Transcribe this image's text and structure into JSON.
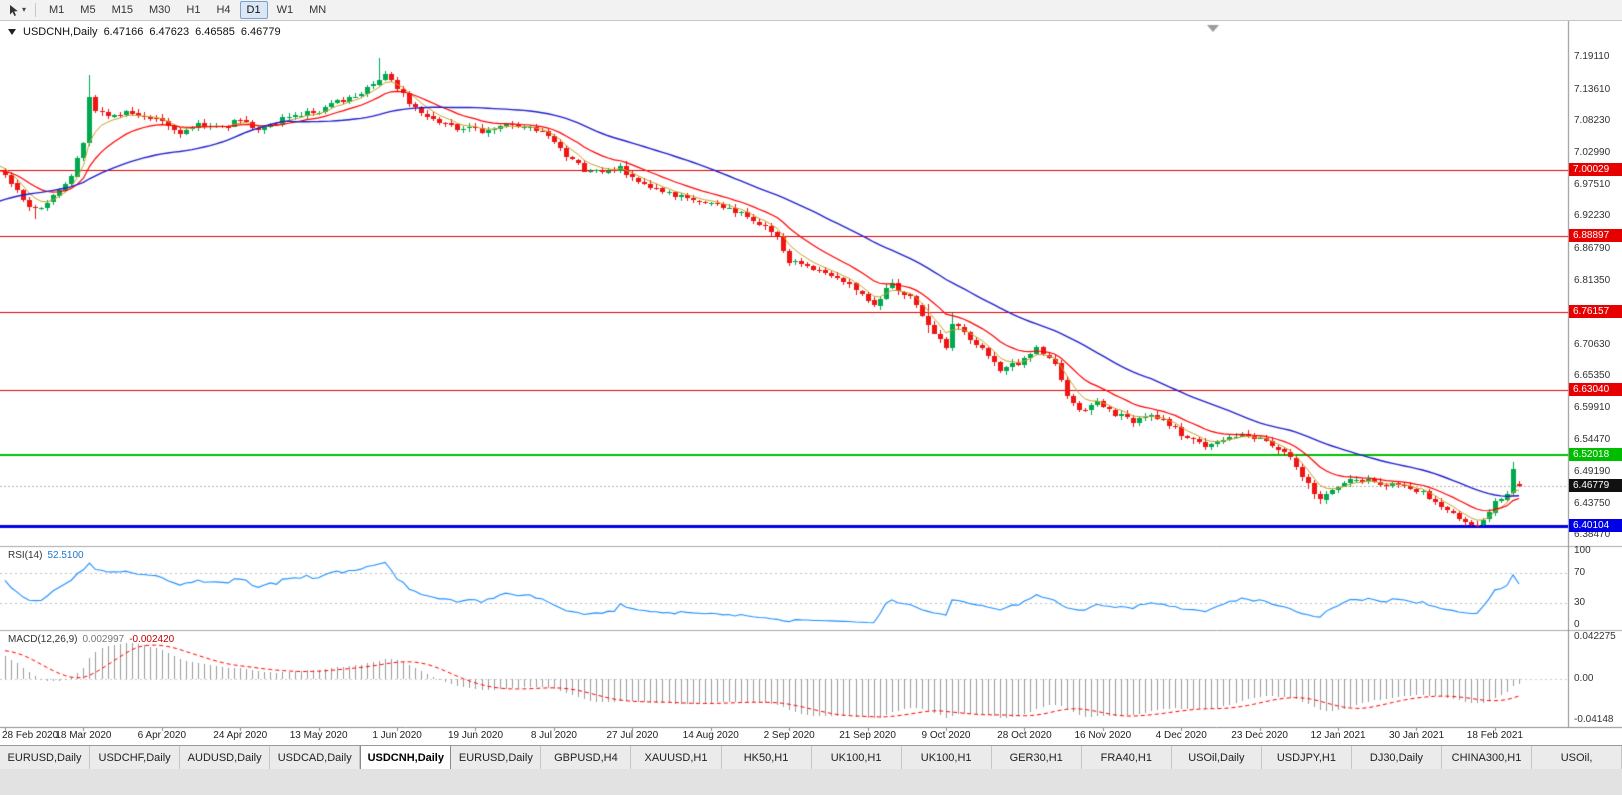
{
  "header": {
    "symbol": "USDCNH,Daily",
    "open": "6.47166",
    "high": "6.47623",
    "low": "6.46585",
    "close": "6.46779"
  },
  "toolbar": {
    "timeframes": [
      {
        "label": "M1",
        "active": false
      },
      {
        "label": "M5",
        "active": false
      },
      {
        "label": "M15",
        "active": false
      },
      {
        "label": "M30",
        "active": false
      },
      {
        "label": "H1",
        "active": false
      },
      {
        "label": "H4",
        "active": false
      },
      {
        "label": "D1",
        "active": true
      },
      {
        "label": "W1",
        "active": false
      },
      {
        "label": "MN",
        "active": false
      }
    ]
  },
  "tabs": [
    {
      "label": "EURUSD,Daily",
      "active": false
    },
    {
      "label": "USDCHF,Daily",
      "active": false
    },
    {
      "label": "AUDUSD,Daily",
      "active": false
    },
    {
      "label": "USDCAD,Daily",
      "active": false
    },
    {
      "label": "USDCNH,Daily",
      "active": true
    },
    {
      "label": "EURUSD,Daily",
      "active": false
    },
    {
      "label": "GBPUSD,H4",
      "active": false
    },
    {
      "label": "XAUUSD,H1",
      "active": false
    },
    {
      "label": "HK50,H1",
      "active": false
    },
    {
      "label": "UK100,H1",
      "active": false
    },
    {
      "label": "UK100,H1",
      "active": false
    },
    {
      "label": "GER30,H1",
      "active": false
    },
    {
      "label": "FRA40,H1",
      "active": false
    },
    {
      "label": "USOil,Daily",
      "active": false
    },
    {
      "label": "USDJPY,H1",
      "active": false
    },
    {
      "label": "DJ30,Daily",
      "active": false
    },
    {
      "label": "CHINA300,H1",
      "active": false
    },
    {
      "label": "USOil,",
      "active": false
    }
  ],
  "chart_data": {
    "type": "candlestick",
    "symbol": "USDCNH",
    "timeframe": "Daily",
    "current_ohlc": {
      "open": 6.47166,
      "high": 6.47623,
      "low": 6.46585,
      "close": 6.46779
    },
    "bid_price": 6.46779,
    "y_axis": {
      "max": 7.25,
      "min": 6.37,
      "ticks": [
        {
          "text": "7.19110",
          "v": 7.1911
        },
        {
          "text": "7.13610",
          "v": 7.1361
        },
        {
          "text": "7.08230",
          "v": 7.0823
        },
        {
          "text": "7.02990",
          "v": 7.0299
        },
        {
          "text": "6.97510",
          "v": 6.9751
        },
        {
          "text": "6.92230",
          "v": 6.9223
        },
        {
          "text": "6.86790",
          "v": 6.8679
        },
        {
          "text": "6.81350",
          "v": 6.8135
        },
        {
          "text": "6.70630",
          "v": 6.7063
        },
        {
          "text": "6.65350",
          "v": 6.6535
        },
        {
          "text": "6.59910",
          "v": 6.5991
        },
        {
          "text": "6.54470",
          "v": 6.5447
        },
        {
          "text": "6.49190",
          "v": 6.4919
        },
        {
          "text": "6.43750",
          "v": 6.4375
        },
        {
          "text": "6.38470",
          "v": 6.3847
        }
      ]
    },
    "levels": [
      {
        "price": 7.00029,
        "text": "7.00029",
        "color": "#E60000",
        "width": 1
      },
      {
        "price": 6.88897,
        "text": "6.88897",
        "color": "#E60000",
        "width": 1
      },
      {
        "price": 6.76157,
        "text": "6.76157",
        "color": "#E60000",
        "width": 1
      },
      {
        "price": 6.6304,
        "text": "6.63040",
        "color": "#E60000",
        "width": 1
      },
      {
        "price": 6.52018,
        "text": "6.52018",
        "color": "#00BD00",
        "width": 2
      },
      {
        "price": 6.40104,
        "text": "6.40104",
        "color": "#0000E6",
        "width": 3
      }
    ],
    "current_price_label": {
      "text": "6.46779",
      "price": 6.46779,
      "color": "#111111"
    },
    "x_axis": {
      "labels": [
        "28 Feb 2020",
        "18 Mar 2020",
        "6 Apr 2020",
        "24 Apr 2020",
        "13 May 2020",
        "1 Jun 2020",
        "19 Jun 2020",
        "8 Jul 2020",
        "27 Jul 2020",
        "14 Aug 2020",
        "2 Sep 2020",
        "21 Sep 2020",
        "9 Oct 2020",
        "28 Oct 2020",
        "16 Nov 2020",
        "4 Dec 2020",
        "23 Dec 2020",
        "12 Jan 2021",
        "30 Jan 2021",
        "18 Feb 2021"
      ],
      "candles_per_label": 13,
      "visible_candles": 252
    },
    "trend_anchors": [
      [
        -50,
        6.93
      ],
      [
        -40,
        6.866
      ],
      [
        -30,
        6.882
      ],
      [
        -20,
        6.92
      ],
      [
        -12,
        6.99
      ],
      [
        -6,
        7.025
      ],
      [
        -2,
        7.005
      ],
      [
        0,
        6.99
      ],
      [
        3,
        6.952
      ],
      [
        5,
        6.932
      ],
      [
        8,
        6.955
      ],
      [
        11,
        6.99
      ],
      [
        13,
        7.05
      ],
      [
        14,
        7.125
      ],
      [
        15,
        7.105
      ],
      [
        17,
        7.09
      ],
      [
        20,
        7.1
      ],
      [
        23,
        7.09
      ],
      [
        26,
        7.082
      ],
      [
        29,
        7.062
      ],
      [
        32,
        7.078
      ],
      [
        36,
        7.072
      ],
      [
        39,
        7.086
      ],
      [
        42,
        7.07
      ],
      [
        45,
        7.08
      ],
      [
        48,
        7.094
      ],
      [
        52,
        7.1
      ],
      [
        55,
        7.114
      ],
      [
        58,
        7.124
      ],
      [
        61,
        7.148
      ],
      [
        63,
        7.163
      ],
      [
        65,
        7.136
      ],
      [
        68,
        7.106
      ],
      [
        71,
        7.088
      ],
      [
        75,
        7.072
      ],
      [
        79,
        7.066
      ],
      [
        83,
        7.076
      ],
      [
        87,
        7.07
      ],
      [
        90,
        7.056
      ],
      [
        93,
        7.022
      ],
      [
        96,
        7.002
      ],
      [
        99,
        6.996
      ],
      [
        102,
        7.004
      ],
      [
        105,
        6.976
      ],
      [
        108,
        6.966
      ],
      [
        111,
        6.956
      ],
      [
        114,
        6.95
      ],
      [
        117,
        6.944
      ],
      [
        120,
        6.936
      ],
      [
        123,
        6.92
      ],
      [
        126,
        6.906
      ],
      [
        128,
        6.886
      ],
      [
        130,
        6.846
      ],
      [
        133,
        6.84
      ],
      [
        136,
        6.828
      ],
      [
        139,
        6.816
      ],
      [
        142,
        6.792
      ],
      [
        144,
        6.776
      ],
      [
        147,
        6.808
      ],
      [
        150,
        6.786
      ],
      [
        153,
        6.742
      ],
      [
        156,
        6.697
      ],
      [
        157,
        6.744
      ],
      [
        159,
        6.726
      ],
      [
        162,
        6.7
      ],
      [
        165,
        6.662
      ],
      [
        168,
        6.676
      ],
      [
        171,
        6.7
      ],
      [
        174,
        6.672
      ],
      [
        176,
        6.622
      ],
      [
        178,
        6.592
      ],
      [
        181,
        6.608
      ],
      [
        184,
        6.59
      ],
      [
        187,
        6.576
      ],
      [
        190,
        6.586
      ],
      [
        193,
        6.572
      ],
      [
        196,
        6.548
      ],
      [
        199,
        6.536
      ],
      [
        202,
        6.546
      ],
      [
        205,
        6.556
      ],
      [
        208,
        6.546
      ],
      [
        211,
        6.532
      ],
      [
        214,
        6.502
      ],
      [
        216,
        6.468
      ],
      [
        218,
        6.442
      ],
      [
        220,
        6.462
      ],
      [
        223,
        6.482
      ],
      [
        226,
        6.476
      ],
      [
        229,
        6.466
      ],
      [
        232,
        6.472
      ],
      [
        235,
        6.456
      ],
      [
        238,
        6.432
      ],
      [
        240,
        6.418
      ],
      [
        242,
        6.408
      ],
      [
        244,
        6.403
      ],
      [
        245,
        6.412
      ],
      [
        246,
        6.426
      ],
      [
        247,
        6.442
      ],
      [
        248,
        6.448
      ],
      [
        249,
        6.455
      ],
      [
        250,
        6.498
      ],
      [
        251,
        6.46779
      ]
    ],
    "wick_boosts": {
      "14": 0.034,
      "62": 0.03,
      "153": 0.012,
      "157": 0.014,
      "250": 0.01
    },
    "wick_boosts_low": {
      "5": 0.012,
      "153": 0.01,
      "216": 0.008
    },
    "pre_candles": 50,
    "seed": 42,
    "noise": {
      "close": 0.0045,
      "gap": 0.0008,
      "wick": 0.006
    },
    "candle_colors": {
      "up": "#00A94F",
      "down": "#F01414"
    },
    "moving_averages": [
      {
        "period": 5,
        "type": "ema",
        "color": "#C9A227",
        "width": 1
      },
      {
        "period": 13,
        "type": "ema",
        "color": "#FF0000",
        "width": 1.2
      },
      {
        "period": 34,
        "type": "sma",
        "color": "#2020CC",
        "width": 1.4
      }
    ],
    "indicators": {
      "rsi": {
        "name": "RSI(14)",
        "period": 14,
        "value_text": "52.5100",
        "color": "#1E90FF",
        "levels": [
          {
            "text": "100",
            "v": 100
          },
          {
            "text": "70",
            "v": 70
          },
          {
            "text": "30",
            "v": 30
          },
          {
            "text": "0",
            "v": 0
          }
        ],
        "dashed_levels": [
          70,
          30
        ]
      },
      "macd": {
        "name": "MACD(12,26,9)",
        "fast": 12,
        "slow": 26,
        "signal": 9,
        "value_main": "0.002997",
        "value_signal": "-0.002420",
        "scale": [
          {
            "text": "0.042275",
            "v": 0.042275
          },
          {
            "text": "0.00",
            "v": 0
          },
          {
            "text": "-0.04148",
            "v": -0.04148
          }
        ],
        "hist_color": "#9A9A9A",
        "signal_color": "#FF0000"
      }
    }
  }
}
